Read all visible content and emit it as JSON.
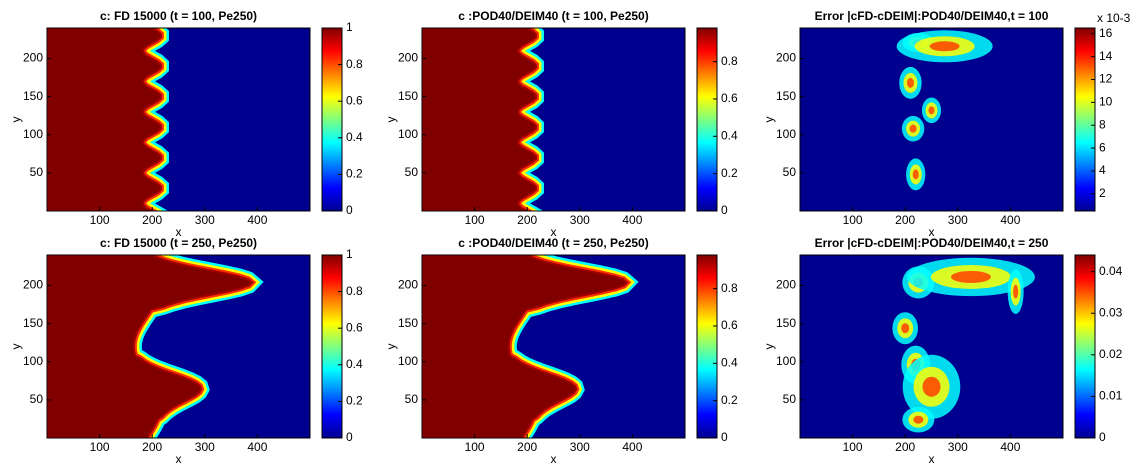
{
  "chart_data": [
    {
      "type": "heatmap",
      "title": "c: FD 15000 (t = 100, Pe250)",
      "xlabel": "x",
      "ylabel": "y",
      "xlim": [
        0,
        500
      ],
      "xticks": [
        100,
        200,
        300,
        400
      ],
      "ylim": [
        0,
        240
      ],
      "yticks": [
        50,
        100,
        150,
        200
      ],
      "clim": [
        0,
        1
      ],
      "cticks": [
        0,
        0.2,
        0.4,
        0.6,
        0.8,
        1
      ]
    },
    {
      "type": "heatmap",
      "title": "c :POD40/DEIM40 (t = 100, Pe250)",
      "xlabel": "x",
      "ylabel": "y",
      "xlim": [
        0,
        500
      ],
      "xticks": [
        100,
        200,
        300,
        400
      ],
      "ylim": [
        0,
        240
      ],
      "yticks": [
        50,
        100,
        150,
        200
      ],
      "clim": [
        0,
        0.98
      ],
      "cticks": [
        0,
        0.2,
        0.4,
        0.6,
        0.8
      ]
    },
    {
      "type": "error-map",
      "title": "Error |cFD-cDEIM|:POD40/DEIM40,t = 100",
      "colorbar_exponent": "x 10-3",
      "xlabel": "x",
      "ylabel": "y",
      "xlim": [
        0,
        500
      ],
      "xticks": [
        100,
        200,
        300,
        400
      ],
      "ylim": [
        0,
        240
      ],
      "yticks": [
        50,
        100,
        150,
        200
      ],
      "clim": [
        0.5,
        16.5
      ],
      "cticks": [
        2,
        4,
        6,
        8,
        10,
        12,
        14,
        16
      ]
    },
    {
      "type": "heatmap",
      "title": "c: FD 15000 (t = 250, Pe250)",
      "xlabel": "x",
      "ylabel": "y",
      "xlim": [
        0,
        500
      ],
      "xticks": [
        100,
        200,
        300,
        400
      ],
      "ylim": [
        0,
        240
      ],
      "yticks": [
        50,
        100,
        150,
        200
      ],
      "clim": [
        0,
        1
      ],
      "cticks": [
        0,
        0.2,
        0.4,
        0.6,
        0.8,
        1
      ]
    },
    {
      "type": "heatmap",
      "title": "c :POD40/DEIM40 (t = 250, Pe250)",
      "xlabel": "x",
      "ylabel": "y",
      "xlim": [
        0,
        500
      ],
      "xticks": [
        100,
        200,
        300,
        400
      ],
      "ylim": [
        0,
        240
      ],
      "yticks": [
        50,
        100,
        150,
        200
      ],
      "clim": [
        0,
        0.98
      ],
      "cticks": [
        0,
        0.2,
        0.4,
        0.6,
        0.8
      ]
    },
    {
      "type": "error-map",
      "title": "Error |cFD-cDEIM|:POD40/DEIM40,t = 250",
      "xlabel": "x",
      "ylabel": "y",
      "xlim": [
        0,
        500
      ],
      "xticks": [
        100,
        200,
        300,
        400
      ],
      "ylim": [
        0,
        240
      ],
      "yticks": [
        50,
        100,
        150,
        200
      ],
      "clim": [
        0,
        0.044
      ],
      "cticks": [
        0,
        0.01,
        0.02,
        0.03,
        0.04
      ]
    }
  ]
}
